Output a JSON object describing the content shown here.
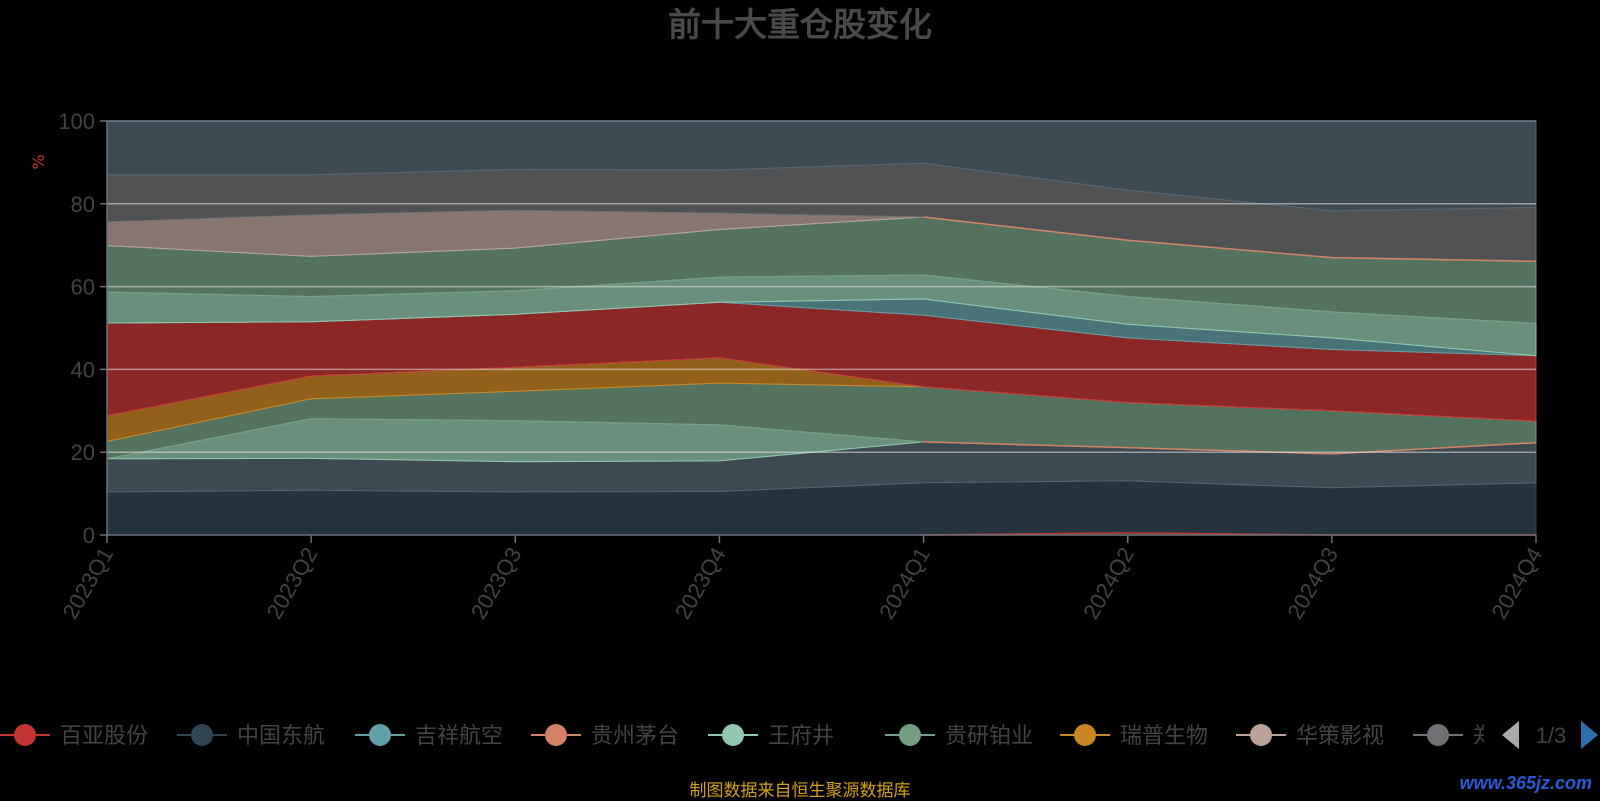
{
  "chart_data": {
    "type": "area",
    "title": "前十大重仓股变化",
    "ylabel": "%",
    "ylim": [
      0,
      100
    ],
    "yticks": [
      0,
      20,
      40,
      60,
      80,
      100
    ],
    "grid": true,
    "x": [
      "2023Q1",
      "2023Q2",
      "2023Q3",
      "2023Q4",
      "2024Q1",
      "2024Q2",
      "2024Q3",
      "2024Q4"
    ],
    "legend_position": "bottom",
    "legend": [
      "百亚股份",
      "中国东航",
      "吉祥航空",
      "贵州茅台",
      "王府井",
      "贵研铂业",
      "瑞普生物",
      "华策影视",
      "郑"
    ],
    "legend_colors": [
      "#c23531",
      "#2f4554",
      "#61a0a8",
      "#d48265",
      "#91c7ae",
      "#749f83",
      "#ca8622",
      "#bda29a",
      "#6e7074"
    ],
    "legend_page": "1/3",
    "layers": [
      {
        "color": "#2f4554",
        "lower": [
          0,
          0,
          0,
          0,
          0,
          0,
          0,
          0
        ],
        "upper": [
          10.4,
          10.8,
          10.4,
          10.5,
          12.6,
          13.1,
          11.4,
          12.6
        ]
      },
      {
        "color": "#546570",
        "lower": [
          10.4,
          10.8,
          10.4,
          10.5,
          12.6,
          13.1,
          11.4,
          12.6
        ],
        "upper": [
          18.4,
          18.5,
          17.7,
          17.9,
          22.5,
          21.1,
          19.6,
          22.3
        ]
      },
      {
        "color": "#91c7ae",
        "lower": [
          18.4,
          18.5,
          17.7,
          17.9,
          22.5,
          21.1,
          19.6,
          22.3
        ],
        "upper": [
          18.4,
          28.1,
          27.6,
          26.6,
          22.5,
          21.1,
          19.6,
          22.3
        ]
      },
      {
        "color": "#749f83",
        "lower": [
          18.4,
          28.1,
          27.6,
          26.6,
          22.5,
          21.1,
          19.6,
          22.3
        ],
        "upper": [
          22.6,
          32.9,
          34.7,
          36.7,
          35.8,
          32.0,
          30.0,
          27.5
        ]
      },
      {
        "color": "#ca8622",
        "lower": [
          22.6,
          32.9,
          34.7,
          36.7,
          35.8,
          32.0,
          30.0,
          27.5
        ],
        "upper": [
          28.8,
          38.4,
          40.5,
          42.8,
          35.8,
          32.0,
          30.0,
          27.5
        ]
      },
      {
        "color": "#bda29a",
        "lower": [
          28.8,
          38.4,
          40.5,
          42.8,
          35.8,
          32.0,
          30.0,
          27.5
        ],
        "upper": [
          28.8,
          38.4,
          40.5,
          42.8,
          35.8,
          32.0,
          30.0,
          27.5
        ]
      },
      {
        "color": "#c23531",
        "lower": [
          28.8,
          38.4,
          40.5,
          42.8,
          35.8,
          32.0,
          30.0,
          27.5
        ],
        "upper": [
          51.2,
          51.5,
          53.3,
          56.2,
          53.1,
          47.6,
          44.8,
          43.3
        ]
      },
      {
        "color": "#61a0a8",
        "lower": [
          51.2,
          51.5,
          53.3,
          56.2,
          53.1,
          47.6,
          44.8,
          43.3
        ],
        "upper": [
          51.2,
          51.5,
          53.3,
          56.2,
          57.0,
          50.9,
          47.6,
          43.3
        ]
      },
      {
        "color": "#91c7ae",
        "lower": [
          51.2,
          51.5,
          53.3,
          56.2,
          57.0,
          50.9,
          47.6,
          43.3
        ],
        "upper": [
          58.7,
          57.6,
          59.0,
          62.3,
          62.8,
          57.6,
          53.9,
          51.1
        ]
      },
      {
        "color": "#749f83",
        "lower": [
          58.7,
          57.6,
          59.0,
          62.3,
          62.8,
          57.6,
          53.9,
          51.1
        ],
        "upper": [
          69.9,
          67.3,
          69.3,
          73.8,
          76.8,
          71.2,
          67.0,
          66.1
        ]
      },
      {
        "color": "#bda29a",
        "lower": [
          69.9,
          67.3,
          69.3,
          73.8,
          76.8,
          71.2,
          67.0,
          66.1
        ],
        "upper": [
          75.6,
          77.3,
          78.4,
          77.7,
          76.8,
          71.2,
          67.0,
          66.1
        ]
      },
      {
        "color": "#6e7074",
        "lower": [
          75.6,
          77.3,
          78.4,
          77.7,
          76.8,
          71.2,
          67.0,
          66.1
        ],
        "upper": [
          87.0,
          87.0,
          88.3,
          88.2,
          89.8,
          83.3,
          78.3,
          79.1
        ]
      },
      {
        "color": "#546570",
        "lower": [
          87.0,
          87.0,
          88.3,
          88.2,
          89.8,
          83.3,
          78.3,
          79.1
        ],
        "upper": [
          100,
          100,
          100,
          100,
          100,
          100,
          100,
          100
        ]
      }
    ],
    "lines": [
      {
        "color": "#d48265",
        "values": [
          null,
          null,
          null,
          null,
          22.5,
          21.1,
          19.6,
          22.3
        ]
      },
      {
        "color": "#d48265",
        "values": [
          null,
          null,
          null,
          null,
          76.8,
          71.2,
          67.0,
          66.1
        ]
      },
      {
        "color": "#c23531",
        "values": [
          null,
          null,
          null,
          null,
          0,
          0.5,
          0,
          0
        ]
      }
    ]
  },
  "footer": {
    "source": "制图数据来自恒生聚源数据库",
    "watermark": "www.365jz.com"
  }
}
